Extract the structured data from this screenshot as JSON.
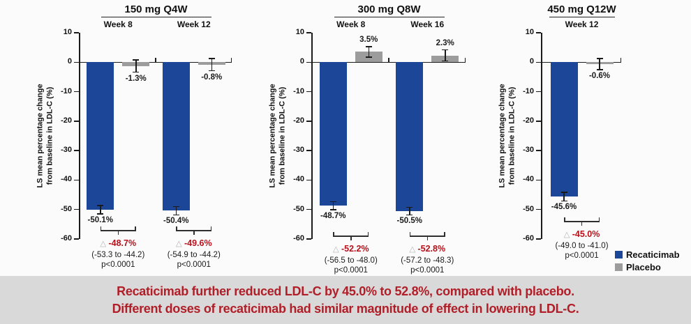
{
  "page": {
    "background": "#fbfbfb",
    "banner": {
      "line1": "Recaticimab further reduced LDL-C by 45.0% to 52.8%, compared with placebo.",
      "line2": "Different doses of recaticimab had similar magnitude of effect in lowering LDL-C.",
      "text_color": "#B01E28",
      "background": "#D9D9D9"
    },
    "legend": {
      "position": "bottom-right",
      "items": [
        {
          "label": "Recaticimab",
          "color": "#1C4798"
        },
        {
          "label": "Placebo",
          "color": "#9C9C9C"
        }
      ]
    },
    "accent_red": "#B5121B",
    "triangle_color": "#B5B5B5"
  },
  "chart_data": [
    {
      "type": "bar",
      "title": "150 mg Q4W",
      "ylabel": "LS mean percentage change\nfrom baseline in LDL-C (%)",
      "ylim": [
        -60,
        10
      ],
      "yticks": [
        10,
        0,
        -10,
        -20,
        -30,
        -40,
        -50,
        -60
      ],
      "grid": false,
      "groups": [
        {
          "label": "Week 8",
          "bars": [
            {
              "series": "Recaticimab",
              "value": -50.1,
              "label": "-50.1%",
              "err": 1.4
            },
            {
              "series": "Placebo",
              "value": -1.3,
              "label": "-1.3%",
              "err": 2.1
            }
          ],
          "difference": {
            "delta": "-48.7%",
            "ci": "(-53.3 to -44.2)",
            "p": "p<0.0001"
          }
        },
        {
          "label": "Week 12",
          "bars": [
            {
              "series": "Recaticimab",
              "value": -50.4,
              "label": "-50.4%",
              "err": 1.4
            },
            {
              "series": "Placebo",
              "value": -0.8,
              "label": "-0.8%",
              "err": 2.1
            }
          ],
          "difference": {
            "delta": "-49.6%",
            "ci": "(-54.9 to -44.2)",
            "p": "p<0.0001"
          }
        }
      ]
    },
    {
      "type": "bar",
      "title": "300 mg Q8W",
      "ylabel": "LS mean percentage change\nfrom baseline in LDL-C (%)",
      "ylim": [
        -60,
        10
      ],
      "yticks": [
        10,
        0,
        -10,
        -20,
        -30,
        -40,
        -50,
        -60
      ],
      "grid": false,
      "groups": [
        {
          "label": "Week 8",
          "bars": [
            {
              "series": "Recaticimab",
              "value": -48.7,
              "label": "-48.7%",
              "err": 1.4
            },
            {
              "series": "Placebo",
              "value": 3.5,
              "label": "3.5%",
              "err": 1.8
            }
          ],
          "difference": {
            "delta": "-52.2%",
            "ci": "(-56.5 to -48.0)",
            "p": "p<0.0001"
          }
        },
        {
          "label": "Week 16",
          "bars": [
            {
              "series": "Recaticimab",
              "value": -50.5,
              "label": "-50.5%",
              "err": 1.3
            },
            {
              "series": "Placebo",
              "value": 2.3,
              "label": "2.3%",
              "err": 1.9
            }
          ],
          "difference": {
            "delta": "-52.8%",
            "ci": "(-57.2 to -48.3)",
            "p": "p<0.0001"
          }
        }
      ]
    },
    {
      "type": "bar",
      "title": "450 mg Q12W",
      "ylabel": "LS mean percentage change\nfrom baseline in LDL-C (%)",
      "ylim": [
        -60,
        10
      ],
      "yticks": [
        10,
        0,
        -10,
        -20,
        -30,
        -40,
        -50,
        -60
      ],
      "grid": false,
      "groups": [
        {
          "label": "Week 12",
          "bars": [
            {
              "series": "Recaticimab",
              "value": -45.6,
              "label": "-45.6%",
              "err": 1.5
            },
            {
              "series": "Placebo",
              "value": -0.6,
              "label": "-0.6%",
              "err": 1.9
            }
          ],
          "difference": {
            "delta": "-45.0%",
            "ci": "(-49.0 to -41.0)",
            "p": "p<0.0001"
          }
        }
      ]
    }
  ]
}
